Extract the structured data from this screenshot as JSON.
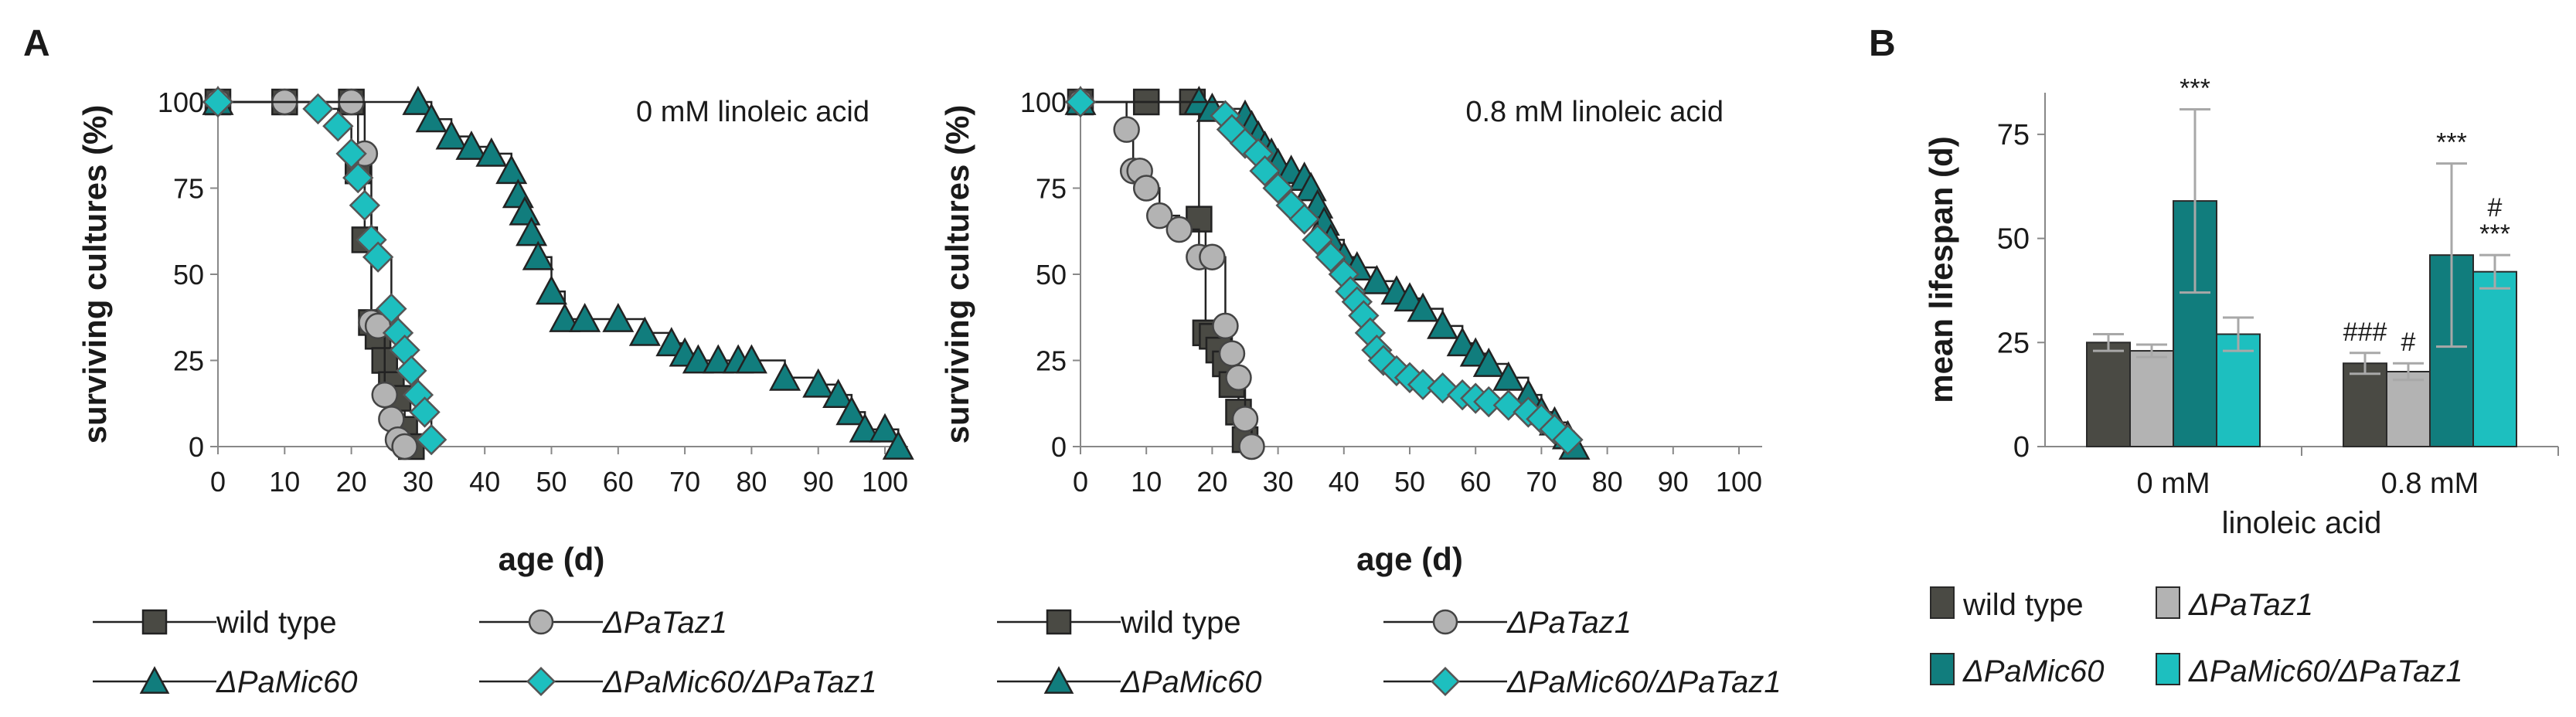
{
  "figure": {
    "panel_a_letter": "A",
    "panel_b_letter": "B"
  },
  "colors": {
    "wild_type": "#4a4a44",
    "PaTaz1": "#b3b3b3",
    "PaMic60": "#117d7d",
    "PaMic60_PaTaz1": "#1dbfbf",
    "error_bar": "#a8a8a8",
    "axis": "#888888",
    "text": "#1a1a1a"
  },
  "chart_data": [
    {
      "id": "A1",
      "type": "line",
      "title": "0 mM linoleic acid",
      "xlabel": "age (d)",
      "ylabel": "surviving cultures (%)",
      "xlim": [
        0,
        100
      ],
      "ylim": [
        0,
        100
      ],
      "xticks": [
        "0",
        "10",
        "20",
        "30",
        "40",
        "50",
        "60",
        "70",
        "80",
        "90",
        "100"
      ],
      "yticks": [
        "0",
        "25",
        "50",
        "75",
        "100"
      ],
      "series": [
        {
          "name": "wild type",
          "marker": "square",
          "color_key": "wild_type",
          "x": [
            0,
            10,
            20,
            21,
            22,
            23,
            24,
            25,
            26,
            27,
            28,
            29
          ],
          "y": [
            100,
            100,
            100,
            80,
            60,
            36,
            32,
            25,
            18,
            14,
            5,
            0
          ]
        },
        {
          "name": "ΔPaTaz1",
          "marker": "circle",
          "color_key": "PaTaz1",
          "x": [
            0,
            10,
            20,
            22,
            23,
            24,
            25,
            26,
            27,
            28
          ],
          "y": [
            100,
            100,
            100,
            85,
            36,
            35,
            15,
            8,
            2,
            0
          ]
        },
        {
          "name": "ΔPaMic60",
          "marker": "triangle",
          "color_key": "PaMic60",
          "x": [
            0,
            30,
            32,
            35,
            38,
            41,
            44,
            45,
            46,
            47,
            48,
            50,
            52,
            55,
            60,
            64,
            68,
            70,
            72,
            75,
            78,
            80,
            85,
            90,
            93,
            95,
            97,
            100,
            102
          ],
          "y": [
            100,
            100,
            95,
            90,
            87,
            85,
            80,
            73,
            68,
            62,
            55,
            45,
            37,
            37,
            37,
            33,
            30,
            27,
            25,
            25,
            25,
            25,
            20,
            18,
            15,
            10,
            5,
            5,
            0
          ]
        },
        {
          "name": "ΔPaMic60/ΔPaTaz1",
          "marker": "diamond",
          "color_key": "PaMic60_PaTaz1",
          "x": [
            0,
            15,
            18,
            20,
            21,
            22,
            23,
            24,
            26,
            27,
            28,
            29,
            30,
            31,
            32
          ],
          "y": [
            100,
            98,
            93,
            85,
            78,
            70,
            60,
            55,
            40,
            33,
            28,
            22,
            15,
            10,
            2
          ]
        }
      ]
    },
    {
      "id": "A2",
      "type": "line",
      "title": "0.8 mM linoleic acid",
      "xlabel": "age (d)",
      "ylabel": "surviving cultures (%)",
      "xlim": [
        0,
        100
      ],
      "ylim": [
        0,
        100
      ],
      "xticks": [
        "0",
        "10",
        "20",
        "30",
        "40",
        "50",
        "60",
        "70",
        "80",
        "90",
        "100"
      ],
      "yticks": [
        "0",
        "25",
        "50",
        "75",
        "100"
      ],
      "series": [
        {
          "name": "wild type",
          "marker": "square",
          "color_key": "wild_type",
          "x": [
            0,
            10,
            17,
            18,
            19,
            20,
            21,
            22,
            23,
            24,
            25
          ],
          "y": [
            100,
            100,
            100,
            66,
            33,
            32,
            28,
            24,
            18,
            10,
            2
          ]
        },
        {
          "name": "ΔPaTaz1",
          "marker": "circle",
          "color_key": "PaTaz1",
          "x": [
            0,
            7,
            8,
            9,
            10,
            12,
            15,
            18,
            20,
            22,
            23,
            24,
            25,
            26
          ],
          "y": [
            100,
            92,
            80,
            80,
            75,
            67,
            63,
            55,
            55,
            35,
            27,
            20,
            8,
            0
          ]
        },
        {
          "name": "ΔPaMic60",
          "marker": "triangle",
          "color_key": "PaMic60",
          "x": [
            0,
            18,
            20,
            25,
            26,
            27,
            28,
            29,
            30,
            32,
            34,
            35,
            36,
            37,
            38,
            40,
            42,
            45,
            48,
            50,
            52,
            55,
            58,
            60,
            62,
            65,
            68,
            70,
            72,
            74,
            75
          ],
          "y": [
            100,
            100,
            98,
            96,
            93,
            90,
            87,
            85,
            82,
            80,
            78,
            75,
            70,
            65,
            60,
            55,
            52,
            48,
            45,
            43,
            40,
            35,
            30,
            27,
            24,
            20,
            15,
            10,
            7,
            3,
            0
          ]
        },
        {
          "name": "ΔPaMic60/ΔPaTaz1",
          "marker": "diamond",
          "color_key": "PaMic60_PaTaz1",
          "x": [
            0,
            22,
            23,
            25,
            27,
            28,
            30,
            32,
            34,
            36,
            38,
            40,
            41,
            42,
            43,
            44,
            45,
            46,
            48,
            50,
            52,
            55,
            58,
            60,
            62,
            65,
            68,
            70,
            72,
            74
          ],
          "y": [
            100,
            96,
            92,
            88,
            85,
            80,
            75,
            70,
            66,
            60,
            55,
            50,
            45,
            42,
            38,
            33,
            28,
            25,
            22,
            20,
            18,
            17,
            15,
            14,
            13,
            12,
            10,
            8,
            5,
            2
          ]
        }
      ]
    },
    {
      "id": "B",
      "type": "bar",
      "categories": [
        "0 mM",
        "0.8 mM"
      ],
      "xlabel": "linoleic acid",
      "ylabel": "mean lifespan (d)",
      "ylim": [
        0,
        85
      ],
      "yticks": [
        "0",
        "25",
        "50",
        "75"
      ],
      "ytick_values": [
        0,
        25,
        50,
        75
      ],
      "series": [
        {
          "name": "wild type",
          "color_key": "wild_type",
          "values": [
            25,
            20
          ],
          "errors": [
            2,
            2.5
          ],
          "annotations": [
            "",
            "###"
          ]
        },
        {
          "name": "ΔPaTaz1",
          "color_key": "PaTaz1",
          "values": [
            23,
            18
          ],
          "errors": [
            1.5,
            2
          ],
          "annotations": [
            "",
            "#"
          ]
        },
        {
          "name": "ΔPaMic60",
          "color_key": "PaMic60",
          "values": [
            59,
            46
          ],
          "errors": [
            22,
            22
          ],
          "annotations": [
            "***",
            "***"
          ]
        },
        {
          "name": "ΔPaMic60/ΔPaTaz1",
          "color_key": "PaMic60_PaTaz1",
          "values": [
            27,
            42
          ],
          "errors": [
            4,
            4
          ],
          "annotations": [
            "",
            "#\n***"
          ]
        }
      ]
    }
  ],
  "legend_a": {
    "items": [
      {
        "label": "wild type",
        "marker": "square",
        "color_key": "wild_type",
        "italic": false
      },
      {
        "label": "ΔPaTaz1",
        "marker": "circle",
        "color_key": "PaTaz1",
        "italic": true
      },
      {
        "label": "ΔPaMic60",
        "marker": "triangle",
        "color_key": "PaMic60",
        "italic": true
      },
      {
        "label": "ΔPaMic60/ΔPaTaz1",
        "marker": "diamond",
        "color_key": "PaMic60_PaTaz1",
        "italic": true
      }
    ]
  },
  "legend_b": {
    "items": [
      {
        "label": "wild type",
        "color_key": "wild_type",
        "italic": false
      },
      {
        "label": "ΔPaTaz1",
        "color_key": "PaTaz1",
        "italic": true
      },
      {
        "label": "ΔPaMic60",
        "color_key": "PaMic60",
        "italic": true
      },
      {
        "label": "ΔPaMic60/ΔPaTaz1",
        "color_key": "PaMic60_PaTaz1",
        "italic": true
      }
    ]
  }
}
